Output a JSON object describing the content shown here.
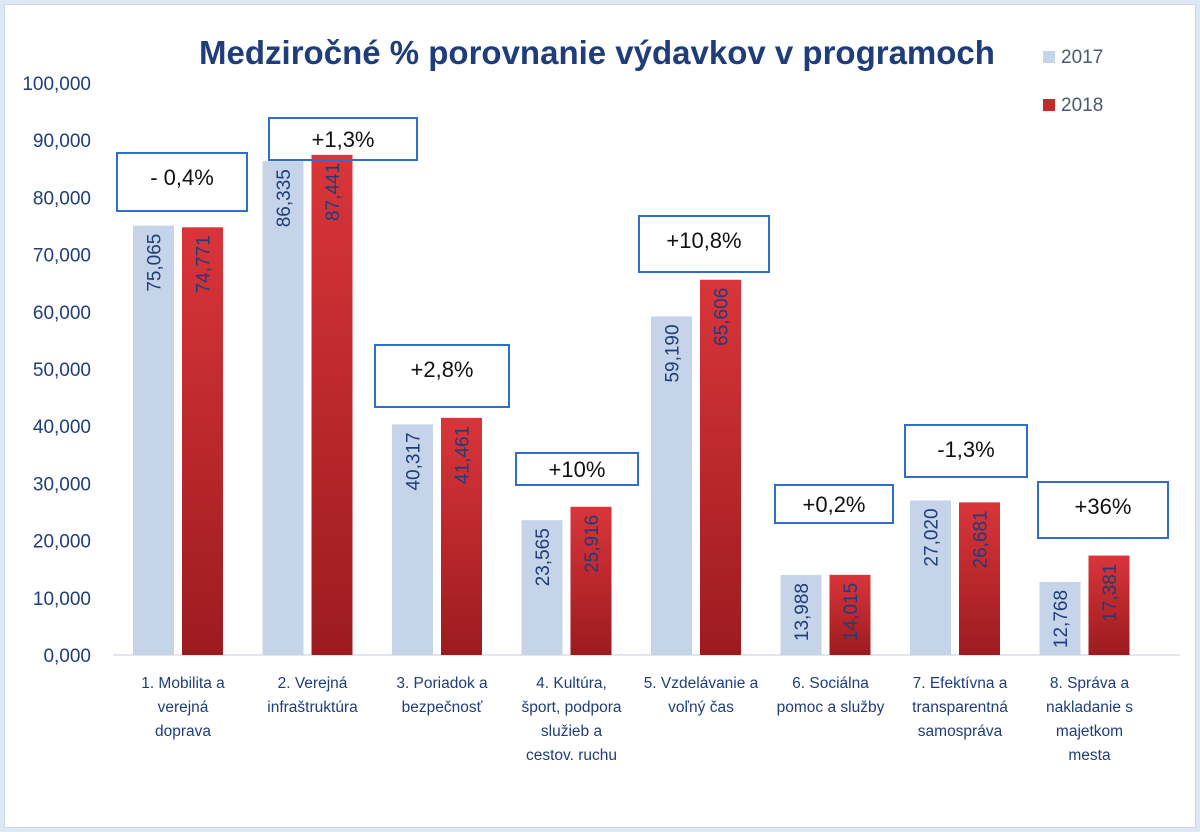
{
  "chart_data": {
    "type": "bar",
    "title": "Medziročné % porovnanie výdavkov v programoch",
    "xlabel": "",
    "ylabel": "",
    "ylim": [
      0,
      100
    ],
    "yticks": [
      "0,000",
      "10,000",
      "20,000",
      "30,000",
      "40,000",
      "50,000",
      "60,000",
      "70,000",
      "80,000",
      "90,000",
      "100,000"
    ],
    "categories": [
      "1. Mobilita a verejná doprava",
      "2. Verejná infraštruktúra",
      "3. Poriadok a bezpečnosť",
      "4. Kultúra, šport, podpora služieb a cestov. ruchu",
      "5. Vzdelávanie a voľný čas",
      "6. Sociálna pomoc a služby",
      "7. Efektívna a transparentná samospráva",
      "8. Správa a nakladanie s majetkom mesta"
    ],
    "category_lines": [
      [
        "1. Mobilita a",
        "verejná",
        "doprava"
      ],
      [
        "2. Verejná",
        "infraštruktúra"
      ],
      [
        "3. Poriadok a",
        "bezpečnosť"
      ],
      [
        "4. Kultúra,",
        "šport, podpora",
        "služieb a",
        "cestov. ruchu"
      ],
      [
        "5. Vzdelávanie a",
        "voľný čas"
      ],
      [
        "6. Sociálna",
        "pomoc a služby"
      ],
      [
        "7. Efektívna a",
        "transparentná",
        "samospráva"
      ],
      [
        "8. Správa a",
        "nakladanie s",
        "majetkom",
        "mesta"
      ]
    ],
    "series": [
      {
        "name": "2017",
        "color": "#c5d4e9",
        "values": [
          75.065,
          86.335,
          40.317,
          23.565,
          59.19,
          13.988,
          27.02,
          12.768
        ],
        "labels": [
          "75,065",
          "86,335",
          "40,317",
          "23,565",
          "59,190",
          "13,988",
          "27,020",
          "12,768"
        ]
      },
      {
        "name": "2018",
        "color": "#c42a2a",
        "values": [
          74.771,
          87.441,
          41.461,
          25.916,
          65.606,
          14.015,
          26.681,
          17.381
        ],
        "labels": [
          "74,771",
          "87,441",
          "41,461",
          "25,916",
          "65,606",
          "14,015",
          "26,681",
          "17,381"
        ]
      }
    ],
    "annotations": [
      "- 0,4%",
      "+1,3%",
      "+2,8%",
      "+10%",
      "+10,8%",
      "+0,2%",
      "-1,3%",
      "+36%"
    ],
    "legend_position": "top-right",
    "grid": false
  }
}
